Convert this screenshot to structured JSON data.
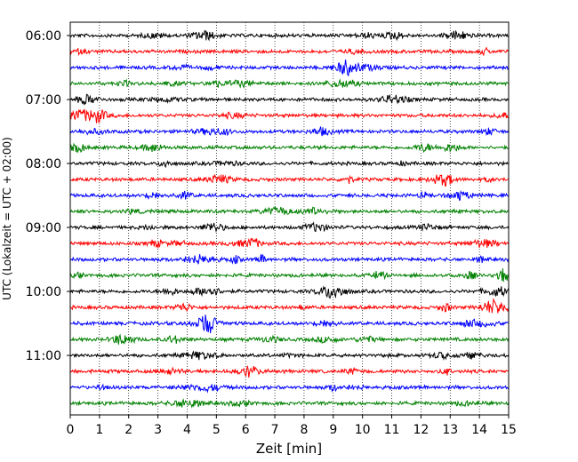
{
  "chart_data": {
    "type": "line",
    "title": "",
    "xlabel": "Zeit  [min]",
    "ylabel": "UTC (Lokalzeit = UTC + 02:00)",
    "xlim": [
      0,
      15
    ],
    "x_ticks": [
      "0",
      "1",
      "2",
      "3",
      "4",
      "5",
      "6",
      "7",
      "8",
      "9",
      "10",
      "11",
      "12",
      "13",
      "14",
      "15"
    ],
    "y_ticks": [
      "06:00",
      "07:00",
      "08:00",
      "09:00",
      "10:00",
      "11:00"
    ],
    "row_interval_minutes": 15,
    "row_count": 24,
    "first_row": "06:00",
    "last_row": "11:45",
    "vertical_grid": "dotted",
    "colors_cycle": [
      "#000000",
      "#ff0000",
      "#0000ff",
      "#008000"
    ]
  }
}
